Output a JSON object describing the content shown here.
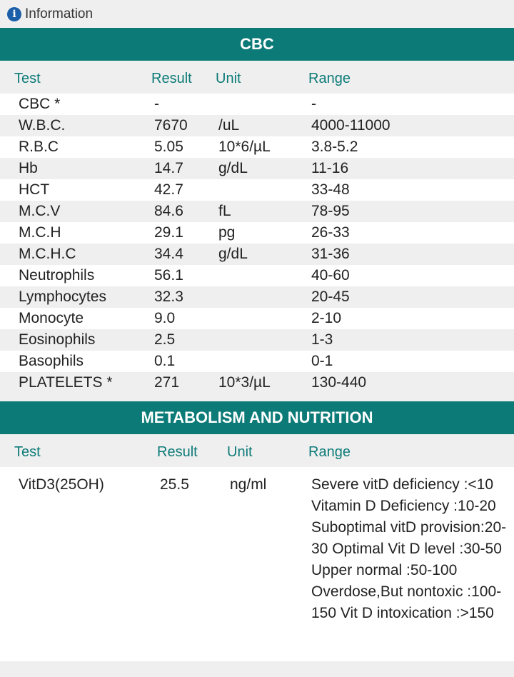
{
  "info": {
    "label": "Information",
    "icon": "info-icon"
  },
  "columns": {
    "test": "Test",
    "result": "Result",
    "unit": "Unit",
    "range": "Range"
  },
  "cbc": {
    "title": "CBC",
    "rows": [
      {
        "test": "CBC *",
        "result": "-",
        "unit": "",
        "range": "-"
      },
      {
        "test": "W.B.C.",
        "result": "7670",
        "unit": "/uL",
        "range": "4000-11000"
      },
      {
        "test": "R.B.C",
        "result": "5.05",
        "unit": "10*6/µL",
        "range": "3.8-5.2"
      },
      {
        "test": "Hb",
        "result": "14.7",
        "unit": "g/dL",
        "range": "11-16"
      },
      {
        "test": "HCT",
        "result": "42.7",
        "unit": "",
        "range": "33-48"
      },
      {
        "test": "M.C.V",
        "result": "84.6",
        "unit": "fL",
        "range": "78-95"
      },
      {
        "test": "M.C.H",
        "result": "29.1",
        "unit": "pg",
        "range": "26-33"
      },
      {
        "test": "M.C.H.C",
        "result": "34.4",
        "unit": "g/dL",
        "range": "31-36"
      },
      {
        "test": "Neutrophils",
        "result": "56.1",
        "unit": "",
        "range": "40-60"
      },
      {
        "test": "Lymphocytes",
        "result": "32.3",
        "unit": "",
        "range": "20-45"
      },
      {
        "test": "Monocyte",
        "result": "9.0",
        "unit": "",
        "range": "2-10"
      },
      {
        "test": "Eosinophils",
        "result": "2.5",
        "unit": "",
        "range": "1-3"
      },
      {
        "test": "Basophils",
        "result": "0.1",
        "unit": "",
        "range": "0-1"
      },
      {
        "test": "PLATELETS *",
        "result": "271",
        "unit": "10*3/µL",
        "range": "130-440"
      }
    ]
  },
  "metabolism": {
    "title": "METABOLISM AND NUTRITION",
    "rows": [
      {
        "test": "VitD3(25OH)",
        "result": "25.5",
        "unit": "ng/ml",
        "range": "Severe vitD deficiency :<10 Vitamin D Deficiency :10-20 Suboptimal vitD provision:20-30 Optimal Vit D level :30-50 Upper normal :50-100 Overdose,But nontoxic :100-150 Vit D intoxication :>150"
      }
    ]
  }
}
